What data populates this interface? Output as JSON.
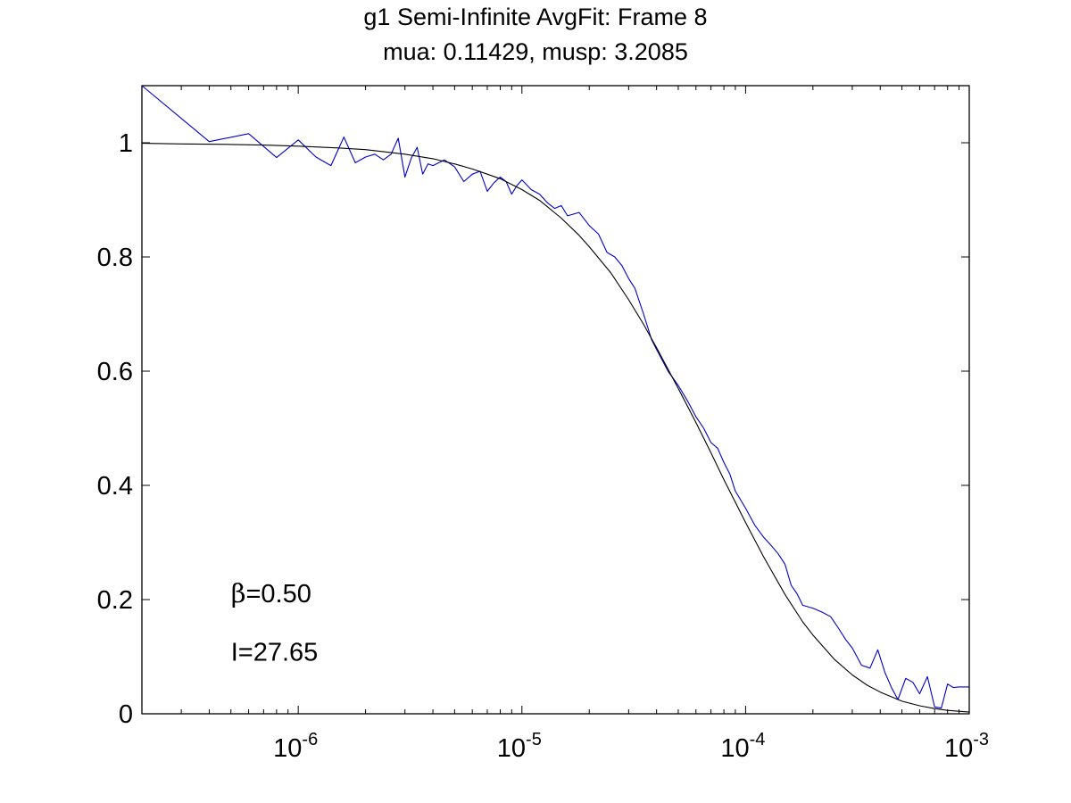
{
  "chart_data": {
    "type": "line",
    "title": "g1 Semi-Infinite AvgFit: Frame 8",
    "subtitle": "mua: 0.11429, musp: 3.2085",
    "xlabel": "",
    "ylabel": "",
    "xscale": "log",
    "xlim": [
      2e-07,
      0.001
    ],
    "ylim": [
      0,
      1.1
    ],
    "grid": false,
    "x_tick_labels": [
      {
        "value": 1e-06,
        "base": "10",
        "exp": "-6"
      },
      {
        "value": 1e-05,
        "base": "10",
        "exp": "-5"
      },
      {
        "value": 0.0001,
        "base": "10",
        "exp": "-4"
      },
      {
        "value": 0.001,
        "base": "10",
        "exp": "-3"
      }
    ],
    "y_ticks": [
      0,
      0.2,
      0.4,
      0.6,
      0.8,
      1
    ],
    "y_tick_labels": [
      "0",
      "0.2",
      "0.4",
      "0.6",
      "0.8",
      "1"
    ],
    "annotations": [
      {
        "symbol": "β",
        "text": "=0.50",
        "x": 5e-07,
        "y": 0.195
      },
      {
        "symbol": "",
        "text": "I=27.65",
        "x": 5e-07,
        "y": 0.093
      }
    ],
    "series": [
      {
        "color": "#0000cc",
        "x": [
          2e-07,
          4e-07,
          6e-07,
          8e-07,
          1e-06,
          1.2e-06,
          1.4e-06,
          1.6e-06,
          1.8e-06,
          2e-06,
          2.2e-06,
          2.4e-06,
          2.6e-06,
          2.8e-06,
          3e-06,
          3.2e-06,
          3.4e-06,
          3.6e-06,
          3.8e-06,
          4e-06,
          4.5e-06,
          5e-06,
          5.5e-06,
          6e-06,
          6.5e-06,
          7e-06,
          7.5e-06,
          8e-06,
          8.5e-06,
          9e-06,
          9.5e-06,
          1e-05,
          1.1e-05,
          1.2e-05,
          1.3e-05,
          1.4e-05,
          1.5e-05,
          1.6e-05,
          1.8e-05,
          2e-05,
          2.2e-05,
          2.4e-05,
          2.6e-05,
          2.8e-05,
          3e-05,
          3.2e-05,
          3.5e-05,
          3.8e-05,
          4e-05,
          4.5e-05,
          5e-05,
          5.5e-05,
          6e-05,
          6.5e-05,
          7e-05,
          7.5e-05,
          8e-05,
          8.5e-05,
          9e-05,
          0.0001,
          0.00011,
          0.00012,
          0.00013,
          0.00014,
          0.00015,
          0.00016,
          0.00017,
          0.00018,
          0.0002,
          0.00022,
          0.00024,
          0.00026,
          0.00028,
          0.0003,
          0.00033,
          0.00036,
          0.00039,
          0.00042,
          0.00045,
          0.00048,
          0.00052,
          0.00056,
          0.0006,
          0.00065,
          0.0007,
          0.00075,
          0.0008,
          0.00085,
          0.0009,
          0.001
        ],
        "y": [
          1.1,
          1.002,
          1.016,
          0.974,
          1.005,
          0.975,
          0.96,
          1.01,
          0.965,
          0.975,
          0.98,
          0.97,
          0.98,
          1.008,
          0.94,
          0.973,
          0.992,
          0.945,
          0.963,
          0.96,
          0.97,
          0.958,
          0.932,
          0.945,
          0.95,
          0.915,
          0.93,
          0.94,
          0.932,
          0.91,
          0.925,
          0.935,
          0.918,
          0.91,
          0.895,
          0.885,
          0.89,
          0.872,
          0.878,
          0.855,
          0.84,
          0.808,
          0.8,
          0.785,
          0.762,
          0.745,
          0.7,
          0.655,
          0.638,
          0.6,
          0.575,
          0.548,
          0.52,
          0.5,
          0.475,
          0.465,
          0.44,
          0.42,
          0.39,
          0.36,
          0.33,
          0.31,
          0.295,
          0.28,
          0.262,
          0.225,
          0.21,
          0.19,
          0.185,
          0.178,
          0.17,
          0.15,
          0.13,
          0.115,
          0.085,
          0.08,
          0.112,
          0.072,
          0.045,
          0.025,
          0.062,
          0.055,
          0.035,
          0.065,
          0.012,
          0.01,
          0.052,
          0.046,
          0.047,
          0.047
        ]
      },
      {
        "color": "#000000",
        "x": [
          2e-07,
          3e-07,
          5e-07,
          7e-07,
          1e-06,
          1.5e-06,
          2e-06,
          3e-06,
          4e-06,
          5e-06,
          6e-06,
          7e-06,
          8e-06,
          1e-05,
          1.2e-05,
          1.5e-05,
          1.8e-05,
          2e-05,
          2.5e-05,
          3e-05,
          3.5e-05,
          4e-05,
          5e-05,
          6e-05,
          7e-05,
          8e-05,
          0.0001,
          0.00012,
          0.00015,
          0.00018,
          0.0002,
          0.00025,
          0.0003,
          0.00035,
          0.0004,
          0.0005,
          0.0006,
          0.0007,
          0.0008,
          0.001
        ],
        "y": [
          0.999,
          0.998,
          0.997,
          0.996,
          0.994,
          0.991,
          0.988,
          0.98,
          0.972,
          0.963,
          0.954,
          0.945,
          0.937,
          0.918,
          0.899,
          0.868,
          0.838,
          0.818,
          0.772,
          0.725,
          0.682,
          0.641,
          0.57,
          0.51,
          0.457,
          0.41,
          0.335,
          0.276,
          0.209,
          0.161,
          0.138,
          0.095,
          0.068,
          0.05,
          0.038,
          0.022,
          0.014,
          0.009,
          0.006,
          0.003
        ]
      }
    ]
  }
}
